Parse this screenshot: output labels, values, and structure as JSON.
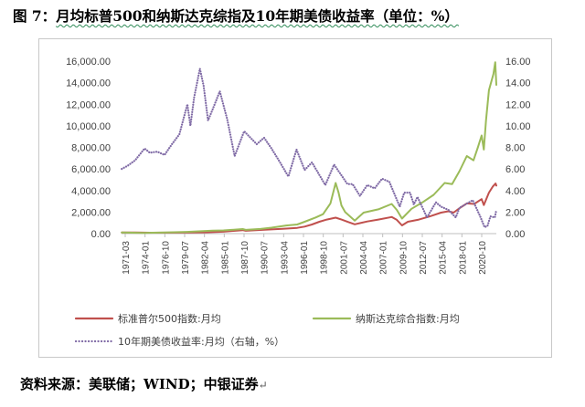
{
  "figure": {
    "title_prefix": "图 7：",
    "title_main": "月均标普500和纳斯达克综指及10年期美债收益率（单位：%）",
    "source": "资料来源：美联储；WIND；中银证券"
  },
  "chart_data": {
    "type": "line",
    "title": "月均标普500和纳斯达克综指及10年期美债收益率（单位：%）",
    "left_axis": {
      "ticks": [
        "0.00",
        "2,000.00",
        "4,000.00",
        "6,000.00",
        "8,000.00",
        "10,000.00",
        "12,000.00",
        "14,000.00",
        "16,000.00"
      ],
      "range": [
        0,
        16000
      ]
    },
    "right_axis": {
      "ticks": [
        "0.00",
        "2.00",
        "4.00",
        "6.00",
        "8.00",
        "10.00",
        "12.00",
        "14.00",
        "16.00"
      ],
      "range": [
        0,
        16
      ]
    },
    "x_labels": [
      "1971-03",
      "1974-01",
      "1976-10",
      "1979-07",
      "1982-04",
      "1985-01",
      "1987-10",
      "1990-07",
      "1993-04",
      "1996-01",
      "1998-10",
      "2001-07",
      "2004-04",
      "2007-01",
      "2009-10",
      "2012-07",
      "2015-04",
      "2018-01",
      "2020-10"
    ],
    "x_range": [
      1971.17,
      2022.0
    ],
    "series": [
      {
        "name": "标准普尔500指数:月均",
        "axis": "left",
        "color": "#c0504d",
        "style": "solid",
        "points": [
          [
            1971.2,
            100
          ],
          [
            1973.0,
            110
          ],
          [
            1975.0,
            85
          ],
          [
            1978.0,
            95
          ],
          [
            1980.0,
            110
          ],
          [
            1982.5,
            120
          ],
          [
            1985.0,
            180
          ],
          [
            1987.6,
            320
          ],
          [
            1988.0,
            260
          ],
          [
            1990.0,
            340
          ],
          [
            1993.0,
            450
          ],
          [
            1995.0,
            530
          ],
          [
            1996.0,
            650
          ],
          [
            1997.0,
            850
          ],
          [
            1998.0,
            1100
          ],
          [
            1999.0,
            1300
          ],
          [
            2000.2,
            1480
          ],
          [
            2001.0,
            1300
          ],
          [
            2002.0,
            1050
          ],
          [
            2002.8,
            860
          ],
          [
            2003.5,
            970
          ],
          [
            2004.5,
            1130
          ],
          [
            2006.0,
            1300
          ],
          [
            2007.8,
            1540
          ],
          [
            2008.5,
            1280
          ],
          [
            2009.2,
            760
          ],
          [
            2010.0,
            1100
          ],
          [
            2011.5,
            1300
          ],
          [
            2013.0,
            1600
          ],
          [
            2014.5,
            1950
          ],
          [
            2015.5,
            2070
          ],
          [
            2016.2,
            1950
          ],
          [
            2017.0,
            2350
          ],
          [
            2018.0,
            2800
          ],
          [
            2019.0,
            2750
          ],
          [
            2020.0,
            3200
          ],
          [
            2020.3,
            2650
          ],
          [
            2021.0,
            3800
          ],
          [
            2021.5,
            4350
          ],
          [
            2021.9,
            4650
          ],
          [
            2022.0,
            4450
          ]
        ]
      },
      {
        "name": "纳斯达克综合指数:月均",
        "axis": "left",
        "color": "#9bbb59",
        "style": "solid",
        "points": [
          [
            1971.2,
            100
          ],
          [
            1974.0,
            70
          ],
          [
            1977.0,
            100
          ],
          [
            1980.0,
            160
          ],
          [
            1983.5,
            280
          ],
          [
            1985.0,
            300
          ],
          [
            1987.6,
            420
          ],
          [
            1988.0,
            350
          ],
          [
            1990.0,
            430
          ],
          [
            1991.5,
            550
          ],
          [
            1993.5,
            750
          ],
          [
            1995.0,
            850
          ],
          [
            1996.0,
            1100
          ],
          [
            1997.5,
            1500
          ],
          [
            1998.5,
            1800
          ],
          [
            1999.5,
            2800
          ],
          [
            2000.2,
            4700
          ],
          [
            2000.6,
            3800
          ],
          [
            2001.0,
            2600
          ],
          [
            2001.5,
            2000
          ],
          [
            2002.8,
            1200
          ],
          [
            2004.0,
            1950
          ],
          [
            2006.0,
            2250
          ],
          [
            2007.8,
            2750
          ],
          [
            2008.5,
            2200
          ],
          [
            2009.2,
            1400
          ],
          [
            2010.5,
            2300
          ],
          [
            2012.0,
            2900
          ],
          [
            2013.5,
            3600
          ],
          [
            2015.0,
            4700
          ],
          [
            2016.0,
            4600
          ],
          [
            2017.0,
            5800
          ],
          [
            2018.0,
            7200
          ],
          [
            2018.9,
            6800
          ],
          [
            2019.5,
            8000
          ],
          [
            2020.0,
            9100
          ],
          [
            2020.3,
            7800
          ],
          [
            2020.6,
            10500
          ],
          [
            2021.0,
            13300
          ],
          [
            2021.6,
            14800
          ],
          [
            2021.85,
            15900
          ],
          [
            2022.0,
            13800
          ]
        ]
      },
      {
        "name": "10年期美债收益率:月均（右轴，%）",
        "axis": "right",
        "color": "#7f6aa5",
        "style": "dotted",
        "points": [
          [
            1971.2,
            6.0
          ],
          [
            1972.0,
            6.3
          ],
          [
            1973.0,
            6.8
          ],
          [
            1974.3,
            7.9
          ],
          [
            1975.0,
            7.5
          ],
          [
            1976.0,
            7.6
          ],
          [
            1977.0,
            7.3
          ],
          [
            1978.0,
            8.3
          ],
          [
            1979.0,
            9.2
          ],
          [
            1980.1,
            12.0
          ],
          [
            1980.5,
            10.0
          ],
          [
            1981.0,
            12.6
          ],
          [
            1981.8,
            15.3
          ],
          [
            1982.3,
            13.7
          ],
          [
            1982.9,
            10.5
          ],
          [
            1983.5,
            11.5
          ],
          [
            1984.5,
            13.2
          ],
          [
            1985.5,
            10.6
          ],
          [
            1986.5,
            7.2
          ],
          [
            1987.8,
            9.5
          ],
          [
            1988.5,
            9.0
          ],
          [
            1989.5,
            8.3
          ],
          [
            1990.5,
            8.9
          ],
          [
            1991.5,
            7.9
          ],
          [
            1992.5,
            6.8
          ],
          [
            1993.8,
            5.3
          ],
          [
            1994.9,
            7.8
          ],
          [
            1996.0,
            5.9
          ],
          [
            1997.0,
            6.6
          ],
          [
            1998.8,
            4.5
          ],
          [
            2000.0,
            6.4
          ],
          [
            2001.8,
            4.6
          ],
          [
            2002.5,
            4.6
          ],
          [
            2003.5,
            3.5
          ],
          [
            2004.5,
            4.5
          ],
          [
            2005.5,
            4.2
          ],
          [
            2006.5,
            5.1
          ],
          [
            2007.5,
            4.8
          ],
          [
            2008.9,
            2.5
          ],
          [
            2009.5,
            3.8
          ],
          [
            2010.3,
            3.8
          ],
          [
            2010.8,
            2.7
          ],
          [
            2011.3,
            3.4
          ],
          [
            2012.6,
            1.5
          ],
          [
            2013.8,
            2.9
          ],
          [
            2014.5,
            2.5
          ],
          [
            2015.5,
            2.2
          ],
          [
            2016.5,
            1.5
          ],
          [
            2017.0,
            2.4
          ],
          [
            2018.8,
            3.1
          ],
          [
            2019.8,
            1.6
          ],
          [
            2020.4,
            0.6
          ],
          [
            2020.8,
            0.7
          ],
          [
            2021.2,
            1.6
          ],
          [
            2021.8,
            1.5
          ],
          [
            2022.0,
            2.2
          ]
        ]
      }
    ]
  }
}
